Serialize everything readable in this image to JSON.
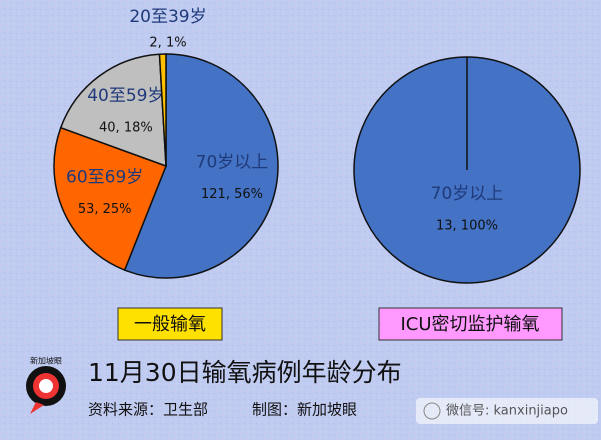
{
  "chart_data": [
    {
      "type": "pie",
      "title": "一般输氧",
      "categories": [
        "70岁以上",
        "60至69岁",
        "40至59岁",
        "20至39岁"
      ],
      "values": [
        121,
        53,
        40,
        2
      ],
      "value_labels": [
        "121, 56%",
        "53, 25%",
        "40, 18%",
        "2, 1%"
      ],
      "colors": [
        "#4472c4",
        "#ff6600",
        "#bfbfbf",
        "#ffc000"
      ]
    },
    {
      "type": "pie",
      "title": "ICU密切监护输氧",
      "categories": [
        "70岁以上"
      ],
      "values": [
        13
      ],
      "value_labels": [
        "13, 100%"
      ],
      "colors": [
        "#4472c4"
      ]
    }
  ],
  "title": "11月30日输氧病例年龄分布",
  "source": "资料来源：卫生部",
  "credit": "制图：新加坡眼",
  "logo": "新加坡眼",
  "watermark": "微信号: kanxinjiapo"
}
